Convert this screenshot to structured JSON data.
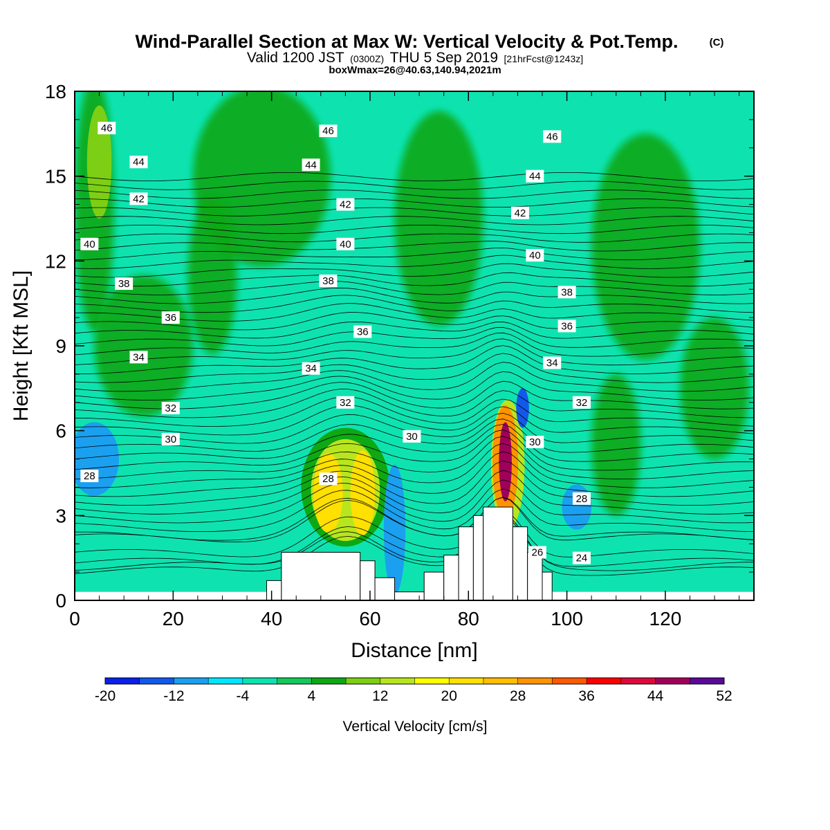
{
  "header": {
    "title": "Wind-Parallel Section at Max W: Vertical Velocity & Pot.Temp.",
    "title_mark": "(C)",
    "subtitle_main": "Valid 1200 JST",
    "subtitle_utc": "(0300Z)",
    "subtitle_date": "THU 5 Sep 2019",
    "subtitle_fcst": "[21hrFcst@1243z]",
    "box_info": "boxWmax=26@40.63,140.94,2021m"
  },
  "chart_data": {
    "type": "heatmap",
    "xlabel": "Distance [nm]",
    "ylabel": "Height [Kft MSL]",
    "xlim": [
      0,
      138
    ],
    "ylim": [
      0,
      18
    ],
    "x_ticks": [
      "0",
      "20",
      "40",
      "60",
      "80",
      "100",
      "120"
    ],
    "y_ticks": [
      "0",
      "3",
      "6",
      "9",
      "12",
      "15",
      "18"
    ],
    "colorbar": {
      "label": "Vertical Velocity [cm/s]",
      "levels": [
        -20,
        -16,
        -12,
        -8,
        -4,
        0,
        4,
        8,
        12,
        16,
        20,
        24,
        28,
        32,
        36,
        40,
        44,
        48,
        52,
        56
      ],
      "tick_labels": [
        "-20",
        "-12",
        "-4",
        "4",
        "12",
        "20",
        "28",
        "36",
        "44",
        "52"
      ],
      "colors": [
        "#0a1fe8",
        "#1259ea",
        "#1ba0f0",
        "#00e6ff",
        "#0ee3b0",
        "#14c85a",
        "#0ea814",
        "#7ccf14",
        "#b8e61e",
        "#ffff00",
        "#ffe000",
        "#ffbe00",
        "#ff9400",
        "#ff5a00",
        "#ff0000",
        "#dc0a3c",
        "#a0005a",
        "#5a0a96"
      ]
    },
    "terrain": [
      {
        "x": 39,
        "top": 0.7
      },
      {
        "x": 42,
        "top": 1.7
      },
      {
        "x": 58,
        "top": 1.4
      },
      {
        "x": 61,
        "top": 0.8
      },
      {
        "x": 65,
        "top": 0.3
      },
      {
        "x": 71,
        "top": 1.0
      },
      {
        "x": 75,
        "top": 1.6
      },
      {
        "x": 78,
        "top": 2.6
      },
      {
        "x": 81,
        "top": 3.0
      },
      {
        "x": 83,
        "top": 3.3
      },
      {
        "x": 89,
        "top": 2.6
      },
      {
        "x": 92,
        "top": 1.7
      },
      {
        "x": 95,
        "top": 1.0
      },
      {
        "x": 97,
        "top": 0.3
      }
    ],
    "w_features": [
      {
        "x": 55,
        "y": 4,
        "rx": 9,
        "ry": 2.1,
        "v": 4
      },
      {
        "x": 55,
        "y": 3.9,
        "rx": 7,
        "ry": 1.8,
        "v": 12
      },
      {
        "x": 51.5,
        "y": 3.8,
        "rx": 3,
        "ry": 1.4,
        "v": 20
      },
      {
        "x": 58.5,
        "y": 3.8,
        "rx": 2.5,
        "ry": 1.5,
        "v": 20
      },
      {
        "x": 88,
        "y": 4.8,
        "rx": 3.4,
        "ry": 2.3,
        "v": 12
      },
      {
        "x": 87.5,
        "y": 4.9,
        "rx": 2.6,
        "ry": 2.0,
        "v": 28
      },
      {
        "x": 87.5,
        "y": 4.9,
        "rx": 1.3,
        "ry": 1.4,
        "v": 44
      },
      {
        "x": 65,
        "y": 2.5,
        "rx": 2.2,
        "ry": 2.3,
        "v": -12
      },
      {
        "x": 91,
        "y": 6.8,
        "rx": 1.3,
        "ry": 0.7,
        "v": -16
      },
      {
        "x": 102,
        "y": 3.3,
        "rx": 3.0,
        "ry": 0.8,
        "v": -12
      },
      {
        "x": 4,
        "y": 5,
        "rx": 5,
        "ry": 1.3,
        "v": -12
      },
      {
        "x": 50,
        "y": 11,
        "rx": 2.5,
        "ry": 1.3,
        "v": -4
      },
      {
        "x": 5,
        "y": 15.5,
        "rx": 2.5,
        "ry": 2,
        "v": 8
      }
    ],
    "isentropes": {
      "levels": [
        24,
        26,
        28,
        30,
        32,
        34,
        36,
        38,
        40,
        42,
        44,
        46
      ],
      "labels": [
        {
          "text": "46",
          "x": 6.5,
          "y": 16.7
        },
        {
          "text": "46",
          "x": 51.5,
          "y": 16.6
        },
        {
          "text": "46",
          "x": 97,
          "y": 16.4
        },
        {
          "text": "44",
          "x": 13,
          "y": 15.5
        },
        {
          "text": "44",
          "x": 48,
          "y": 15.4
        },
        {
          "text": "44",
          "x": 93.5,
          "y": 15.0
        },
        {
          "text": "42",
          "x": 13,
          "y": 14.2
        },
        {
          "text": "42",
          "x": 55,
          "y": 14.0
        },
        {
          "text": "42",
          "x": 90.5,
          "y": 13.7
        },
        {
          "text": "40",
          "x": 3,
          "y": 12.6
        },
        {
          "text": "40",
          "x": 55,
          "y": 12.6
        },
        {
          "text": "40",
          "x": 93.5,
          "y": 12.2
        },
        {
          "text": "38",
          "x": 10,
          "y": 11.2
        },
        {
          "text": "38",
          "x": 51.5,
          "y": 11.3
        },
        {
          "text": "38",
          "x": 100,
          "y": 10.9
        },
        {
          "text": "36",
          "x": 19.5,
          "y": 10.0
        },
        {
          "text": "36",
          "x": 58.5,
          "y": 9.5
        },
        {
          "text": "36",
          "x": 100,
          "y": 9.7
        },
        {
          "text": "34",
          "x": 13,
          "y": 8.6
        },
        {
          "text": "34",
          "x": 48,
          "y": 8.2
        },
        {
          "text": "34",
          "x": 97,
          "y": 8.4
        },
        {
          "text": "32",
          "x": 19.5,
          "y": 6.8
        },
        {
          "text": "32",
          "x": 55,
          "y": 7.0
        },
        {
          "text": "32",
          "x": 103,
          "y": 7.0
        },
        {
          "text": "30",
          "x": 19.5,
          "y": 5.7
        },
        {
          "text": "30",
          "x": 68.5,
          "y": 5.8
        },
        {
          "text": "30",
          "x": 93.5,
          "y": 5.6
        },
        {
          "text": "28",
          "x": 3,
          "y": 4.4
        },
        {
          "text": "28",
          "x": 51.5,
          "y": 4.3
        },
        {
          "text": "28",
          "x": 103,
          "y": 3.6
        },
        {
          "text": "26",
          "x": 94,
          "y": 1.7
        },
        {
          "text": "24",
          "x": 103,
          "y": 1.5
        }
      ]
    }
  }
}
